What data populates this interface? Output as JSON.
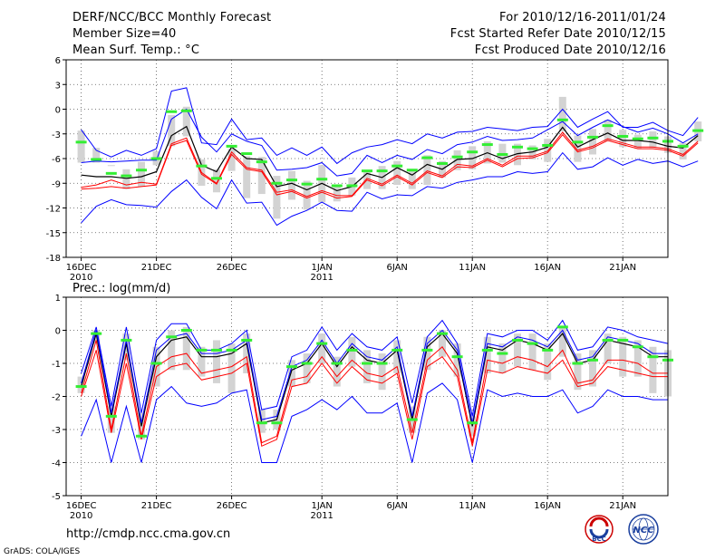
{
  "header": {
    "title": "DERF/NCC/BCC Monthly Forecast",
    "member_size": "Member Size=40",
    "variable": "Mean Surf. Temp.: °C",
    "period": "For 2010/12/16-2011/01/24",
    "started": "Fcst Started Refer Date 2010/12/15",
    "produced": "Fcst Produced Date 2010/12/16"
  },
  "footer": {
    "url": "http://cmdp.ncc.cma.gov.cn",
    "credit": "GrADS: COLA/IGES",
    "logo_bcc": "BCC",
    "logo_ncc": "NCC"
  },
  "colors": {
    "spread": "#d3d3d3",
    "mean": "#000000",
    "envelope": "#0000ff",
    "observed": "#ff0000",
    "marker": "#33ee33"
  },
  "chart_data": [
    {
      "type": "line",
      "title": "Mean Surf. Temp.: °C",
      "x_tick_labels": [
        "16DEC",
        "21DEC",
        "26DEC",
        "1JAN",
        "6JAN",
        "11JAN",
        "16JAN",
        "21JAN"
      ],
      "x_tick_days": [
        1,
        6,
        11,
        17,
        22,
        27,
        32,
        37
      ],
      "x_year_labels": [
        {
          "day": 1,
          "label": "2010"
        },
        {
          "day": 17,
          "label": "2011"
        }
      ],
      "xlim": [
        0,
        40
      ],
      "ylim": [
        -18,
        6
      ],
      "y_ticks": [
        6,
        3,
        0,
        -3,
        -6,
        -9,
        -12,
        -15,
        -18
      ],
      "series": [
        {
          "name": "ensemble mean",
          "color": "#000000",
          "values": [
            -8,
            -8.2,
            -8.2,
            -8.4,
            -8.2,
            -7.6,
            -3.2,
            -2.1,
            -6.8,
            -7.6,
            -4.6,
            -6,
            -6.1,
            -9.4,
            -9,
            -9.8,
            -9,
            -9.9,
            -9.4,
            -7.8,
            -8.3,
            -7.1,
            -8,
            -6.7,
            -7.3,
            -6.1,
            -6,
            -5.3,
            -6,
            -5.4,
            -5.2,
            -4.6,
            -2.2,
            -4.6,
            -3.7,
            -2.9,
            -3.8,
            -3.8,
            -4,
            -4.5,
            -4.7,
            -3.2
          ]
        },
        {
          "name": "observed",
          "color": "#ff0000",
          "values": [
            -9.5,
            -9.2,
            -8.6,
            -9.2,
            -8.9,
            -9.1,
            -4.2,
            -3.5,
            -7.7,
            -9,
            -5.2,
            -7.1,
            -7.4,
            -10.1,
            -9.8,
            -10.6,
            -9.9,
            -10.5,
            -10.5,
            -8.4,
            -9.1,
            -8,
            -9,
            -7.5,
            -8.1,
            -6.7,
            -6.9,
            -6,
            -6.8,
            -5.7,
            -5.7,
            -5.1,
            -2.8,
            -5,
            -4.5,
            -3.6,
            -4.1,
            -4.6,
            -4.6,
            -4.8,
            -5.5,
            -3.9
          ]
        },
        {
          "name": "envelope high",
          "color": "#0000ff",
          "values": [
            -6.5,
            -6.3,
            -6.4,
            -6.3,
            -6.2,
            -6.2,
            -1.2,
            0,
            -3.4,
            -5.2,
            -3,
            -3.9,
            -4.4,
            -7.4,
            -7.3,
            -7.1,
            -6.5,
            -8.1,
            -7.8,
            -5.6,
            -6.5,
            -5.6,
            -6.1,
            -4.9,
            -5.4,
            -4.3,
            -4,
            -3.3,
            -3.8,
            -3.7,
            -3.5,
            -2.5,
            -1.5,
            -3.2,
            -2.2,
            -1.3,
            -2.1,
            -2.8,
            -2.3,
            -3,
            -4.1,
            -3
          ]
        },
        {
          "name": "envelope low",
          "color": "#ff0000",
          "values": [
            -9.7,
            -9.6,
            -9.4,
            -9.6,
            -9.4,
            -9.2,
            -4.4,
            -3.8,
            -7.9,
            -9.1,
            -5.5,
            -7.3,
            -7.6,
            -10.4,
            -10,
            -10.8,
            -10.1,
            -10.8,
            -10.6,
            -8.6,
            -9.3,
            -8.2,
            -9.2,
            -7.7,
            -8.3,
            -7,
            -7.1,
            -6.2,
            -7,
            -6,
            -5.9,
            -5.3,
            -3.1,
            -5.2,
            -4.7,
            -3.8,
            -4.3,
            -4.8,
            -4.8,
            -5,
            -5.7,
            -4.1
          ]
        },
        {
          "name": "outer max",
          "color": "#0000ff",
          "values": [
            -2.5,
            -5,
            -5.8,
            -5,
            -5.6,
            -4.8,
            2.2,
            2.6,
            -4.1,
            -4.3,
            -1.2,
            -3.7,
            -3.5,
            -5.6,
            -4.7,
            -5.6,
            -4.6,
            -6.6,
            -5.3,
            -4.6,
            -4.3,
            -3.7,
            -4.2,
            -3,
            -3.5,
            -2.8,
            -2.7,
            -2.2,
            -2.4,
            -2.6,
            -2.2,
            -2.1,
            0,
            -2.2,
            -1.2,
            -0.3,
            -2.2,
            -2.2,
            -1.6,
            -2.6,
            -3.2,
            -1
          ]
        },
        {
          "name": "outer min",
          "color": "#0000ff",
          "values": [
            -13.8,
            -11.8,
            -11,
            -11.6,
            -11.7,
            -11.9,
            -10,
            -8.6,
            -10.7,
            -12.1,
            -8.6,
            -11.4,
            -11.3,
            -14.1,
            -13,
            -12.3,
            -11.3,
            -12.3,
            -12.4,
            -10.1,
            -10.9,
            -10.4,
            -10.5,
            -9.4,
            -9.6,
            -8.9,
            -8.6,
            -8.2,
            -8.2,
            -7.6,
            -7.8,
            -7.6,
            -5.3,
            -7.3,
            -7,
            -5.9,
            -6.8,
            -6.1,
            -6.6,
            -6.3,
            -7,
            -6.3
          ]
        }
      ],
      "spread_low": [
        -6.5,
        -6.5,
        -6.8,
        -9.7,
        -9.4,
        -6.8,
        -4.5,
        -3.3,
        -9.3,
        -10.1,
        -7.5,
        -10.8,
        -10.3,
        -13.3,
        -11,
        -12.2,
        -11.3,
        -11.2,
        -10.5,
        -9.7,
        -9.7,
        -9.2,
        -9.7,
        -9.2,
        -8.3,
        -7.4,
        -7.3,
        -6.6,
        -6.5,
        -6.8,
        -6.1,
        -6.4,
        -2.7,
        -6.4,
        -5.5,
        -3.9,
        -4.6,
        -4.8,
        -4.7,
        -5.3,
        -6.1,
        -3.9
      ],
      "spread_high": [
        -2.6,
        -4.7,
        -6.8,
        -7.3,
        -6.4,
        -5.1,
        -0.7,
        0.3,
        -6.1,
        -7.3,
        -4.8,
        -5.7,
        -5.8,
        -8.1,
        -7.5,
        -8.7,
        -6.8,
        -9.3,
        -8.3,
        -7.6,
        -6.9,
        -6.3,
        -7.3,
        -5.6,
        -6.3,
        -5,
        -4.5,
        -3.9,
        -4.2,
        -4.2,
        -4.4,
        -3.6,
        1.5,
        -3.2,
        -2.4,
        -1.3,
        -2.5,
        -3.1,
        -2.7,
        -3.3,
        -4.1,
        -1.5
      ],
      "markers": [
        -4,
        -6.1,
        -7.8,
        -8.1,
        -7.4,
        -6,
        -0.3,
        -0.2,
        -6.9,
        -8.4,
        -4.5,
        -5.4,
        -6.4,
        -9,
        -8.6,
        -9.1,
        -8.5,
        -9.3,
        -9.3,
        -7.5,
        -7.5,
        -6.9,
        -7.4,
        -5.9,
        -6.6,
        -5.8,
        -5.2,
        -4.3,
        -5.5,
        -4.6,
        -4.8,
        -4.4,
        -1.3,
        -4,
        -3.4,
        -2,
        -3.3,
        -3.6,
        -3.5,
        -3.9,
        -4.5,
        -2.6
      ]
    },
    {
      "type": "line",
      "title": "Prec.: log(mm/d)",
      "x_tick_labels": [
        "16DEC",
        "21DEC",
        "26DEC",
        "1JAN",
        "6JAN",
        "11JAN",
        "16JAN",
        "21JAN"
      ],
      "x_tick_days": [
        1,
        6,
        11,
        17,
        22,
        27,
        32,
        37
      ],
      "x_year_labels": [
        {
          "day": 1,
          "label": "2010"
        },
        {
          "day": 17,
          "label": "2011"
        }
      ],
      "xlim": [
        0,
        40
      ],
      "ylim": [
        -5,
        1
      ],
      "y_ticks": [
        1,
        0,
        -1,
        -2,
        -3,
        -4,
        -5
      ],
      "series": [
        {
          "name": "ensemble mean",
          "color": "#000000",
          "values": [
            -1.7,
            -0.1,
            -2.6,
            -0.4,
            -2.9,
            -0.8,
            -0.3,
            -0.2,
            -0.8,
            -0.8,
            -0.7,
            -0.4,
            -2.8,
            -2.7,
            -1.2,
            -1,
            -0.4,
            -1.1,
            -0.5,
            -0.9,
            -1,
            -0.6,
            -2.7,
            -0.5,
            -0.1,
            -0.7,
            -2.9,
            -0.5,
            -0.6,
            -0.3,
            -0.4,
            -0.6,
            -0.1,
            -1,
            -0.9,
            -0.3,
            -0.4,
            -0.5,
            -0.8,
            -0.8
          ]
        },
        {
          "name": "observed",
          "color": "#ff0000",
          "values": [
            -1.9,
            -0.3,
            -3,
            -0.7,
            -3.2,
            -1.1,
            -0.8,
            -0.7,
            -1.3,
            -1.2,
            -1.1,
            -0.8,
            -3.4,
            -3.2,
            -1.5,
            -1.4,
            -0.8,
            -1.4,
            -0.9,
            -1.3,
            -1.4,
            -1.1,
            -3.1,
            -0.9,
            -0.5,
            -1.2,
            -3.4,
            -0.9,
            -1,
            -0.8,
            -0.9,
            -1.1,
            -0.6,
            -1.6,
            -1.5,
            -0.9,
            -0.9,
            -1,
            -1.3,
            -1.3
          ]
        },
        {
          "name": "envelope high",
          "color": "#0000ff",
          "values": [
            -1.6,
            0,
            -2.5,
            -0.3,
            -2.8,
            -0.6,
            -0.2,
            -0.1,
            -0.7,
            -0.7,
            -0.6,
            -0.3,
            -2.7,
            -2.6,
            -1.1,
            -0.9,
            -0.3,
            -1,
            -0.4,
            -0.8,
            -0.9,
            -0.5,
            -2.6,
            -0.4,
            0,
            -0.6,
            -2.8,
            -0.4,
            -0.5,
            -0.2,
            -0.3,
            -0.5,
            0,
            -0.9,
            -0.8,
            -0.2,
            -0.3,
            -0.4,
            -0.7,
            -0.7
          ]
        },
        {
          "name": "envelope low",
          "color": "#ff0000",
          "values": [
            -2,
            -0.6,
            -3.1,
            -1,
            -3.3,
            -1.4,
            -1.1,
            -1,
            -1.5,
            -1.4,
            -1.3,
            -1,
            -3.5,
            -3.3,
            -1.7,
            -1.6,
            -1,
            -1.6,
            -1.1,
            -1.5,
            -1.6,
            -1.3,
            -3.3,
            -1.1,
            -0.8,
            -1.4,
            -3.5,
            -1.2,
            -1.3,
            -1.1,
            -1.2,
            -1.3,
            -0.9,
            -1.7,
            -1.6,
            -1.1,
            -1.2,
            -1.3,
            -1.4,
            -1.4
          ]
        },
        {
          "name": "outer max",
          "color": "#0000ff",
          "values": [
            -1.3,
            0.1,
            -2.3,
            0.1,
            -2.5,
            -0.3,
            0.2,
            0.2,
            -0.6,
            -0.6,
            -0.4,
            0,
            -2.4,
            -2.3,
            -0.8,
            -0.6,
            0.1,
            -0.6,
            -0.1,
            -0.5,
            -0.6,
            -0.2,
            -2.2,
            -0.2,
            0.3,
            -0.4,
            -2.6,
            -0.1,
            -0.2,
            0,
            0,
            -0.3,
            0.3,
            -0.6,
            -0.5,
            0.1,
            0,
            -0.2,
            -0.3,
            -0.4
          ]
        },
        {
          "name": "outer min",
          "color": "#0000ff",
          "values": [
            -3.2,
            -2.1,
            -4,
            -2.3,
            -4,
            -2.1,
            -1.7,
            -2.2,
            -2.3,
            -2.2,
            -1.9,
            -1.8,
            -4,
            -4,
            -2.6,
            -2.4,
            -2.1,
            -2.4,
            -2,
            -2.5,
            -2.5,
            -2.2,
            -4,
            -1.9,
            -1.6,
            -2.1,
            -4,
            -1.8,
            -2,
            -1.9,
            -2,
            -2,
            -1.8,
            -2.5,
            -2.3,
            -1.8,
            -2,
            -2,
            -2.1,
            -2.1
          ]
        }
      ],
      "spread_low": [
        -1.9,
        -0.4,
        -3.1,
        -0.9,
        -3.3,
        -1.7,
        -1.2,
        -1.2,
        -1.4,
        -1.6,
        -1.9,
        -1.3,
        -3.1,
        -3,
        -1.7,
        -1.6,
        -1,
        -1.7,
        -1.1,
        -1.6,
        -1.8,
        -1.3,
        -3.1,
        -1.2,
        -0.8,
        -1.4,
        -3.2,
        -1.3,
        -1.3,
        -1.1,
        -1.2,
        -1.5,
        -0.8,
        -1.8,
        -1.7,
        -1,
        -1.4,
        -1.4,
        -1.9,
        -2
      ],
      "spread_high": [
        -1.4,
        0,
        -2.3,
        -0.1,
        -2.5,
        -0.5,
        0,
        0.1,
        -0.5,
        -0.3,
        -0.4,
        -0.1,
        -2.4,
        -2.4,
        -0.9,
        -0.7,
        -0.1,
        -0.8,
        -0.2,
        -0.6,
        -0.7,
        -0.3,
        -2.3,
        -0.2,
        0,
        -0.4,
        -2.6,
        -0.2,
        -0.4,
        -0.1,
        -0.1,
        -0.4,
        0.1,
        -0.7,
        -0.6,
        -0.1,
        -0.2,
        -0.3,
        -0.5,
        -0.6
      ],
      "markers": [
        -1.7,
        -0.1,
        -2.6,
        -0.3,
        -3.2,
        -1,
        -0.2,
        0,
        -0.6,
        -0.6,
        -0.6,
        -0.3,
        -2.8,
        -2.8,
        -1.1,
        -1,
        -0.4,
        -1,
        -0.6,
        -1,
        -1,
        -0.6,
        -2.7,
        -0.6,
        -0.1,
        -0.8,
        -2.8,
        -0.6,
        -0.7,
        -0.3,
        -0.4,
        -0.6,
        0.1,
        -1,
        -0.9,
        -0.3,
        -0.3,
        -0.5,
        -0.8,
        -0.9
      ]
    }
  ]
}
